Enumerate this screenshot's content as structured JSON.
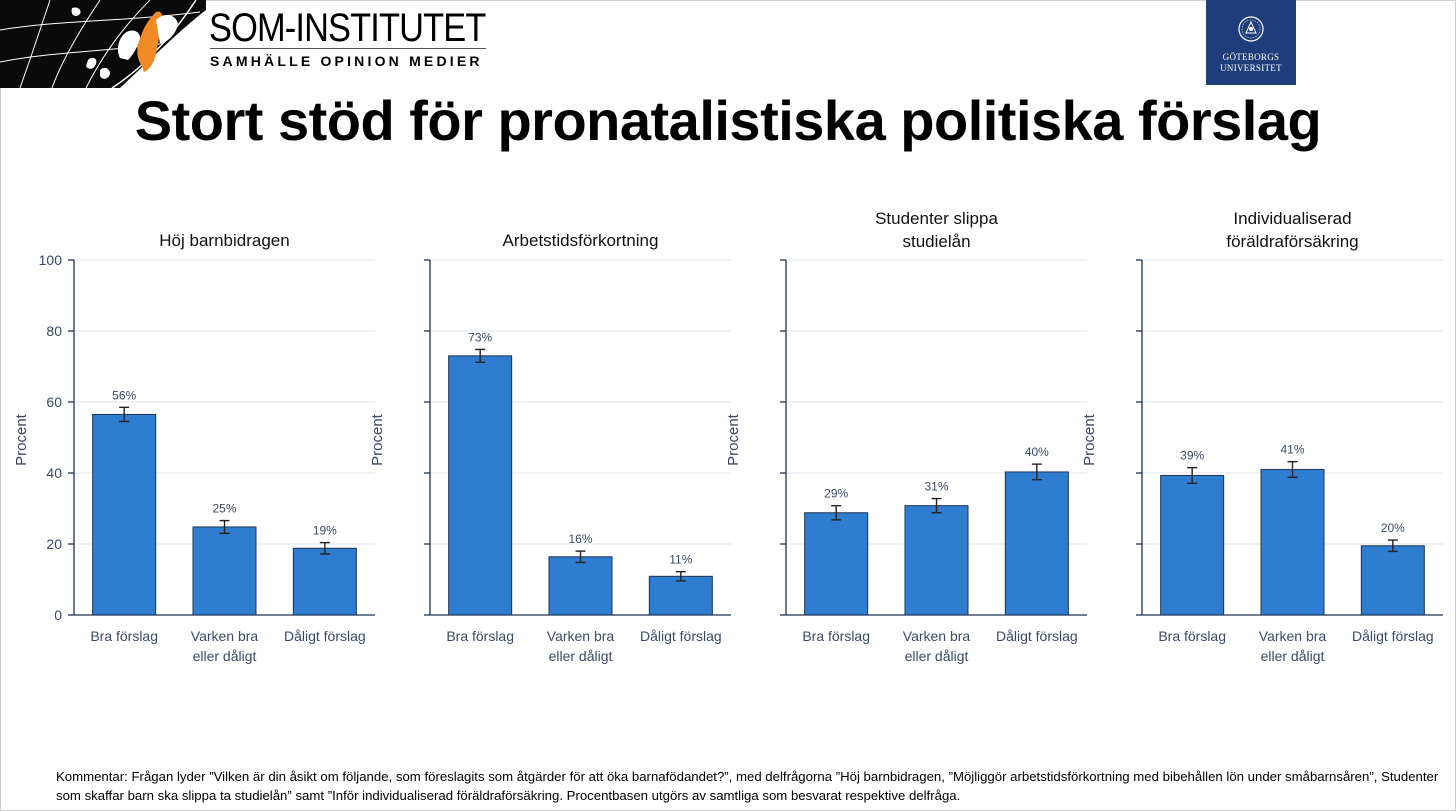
{
  "header": {
    "org_name": "SOM-INSTITUTET",
    "org_tagline": "SAMHÄLLE OPINION MEDIER",
    "university_line1": "GÖTEBORGS",
    "university_line2": "UNIVERSITET"
  },
  "title": "Stort stöd för pronatalistiska politiska förslag",
  "colors": {
    "bar": "#2f7dd1",
    "bar_edge": "#1f3350",
    "axis": "#1f3350",
    "grid": "#dde3ee",
    "text": "#3a4a66"
  },
  "chart_data": [
    {
      "type": "bar",
      "title": [
        "Höj barnbidragen"
      ],
      "ylabel": "Procent",
      "ylim": [
        0,
        100
      ],
      "yticks": [
        0,
        20,
        40,
        60,
        80,
        100
      ],
      "show_tick_labels": true,
      "categories": [
        [
          "Bra förslag"
        ],
        [
          "Varken bra",
          "eller dåligt"
        ],
        [
          "Dåligt förslag"
        ]
      ],
      "values": [
        56.5,
        24.8,
        18.8
      ],
      "errors": [
        2.0,
        1.8,
        1.6
      ],
      "labels": [
        "56%",
        "25%",
        "19%"
      ],
      "grid": true
    },
    {
      "type": "bar",
      "title": [
        "Arbetstidsförkortning"
      ],
      "ylabel": "Procent",
      "ylim": [
        0,
        100
      ],
      "yticks": [
        0,
        20,
        40,
        60,
        80,
        100
      ],
      "show_tick_labels": false,
      "categories": [
        [
          "Bra förslag"
        ],
        [
          "Varken bra",
          "eller dåligt"
        ],
        [
          "Dåligt förslag"
        ]
      ],
      "values": [
        73,
        16.4,
        10.9
      ],
      "errors": [
        1.8,
        1.6,
        1.3
      ],
      "labels": [
        "73%",
        "16%",
        "11%"
      ],
      "grid": true
    },
    {
      "type": "bar",
      "title": [
        "Studenter slippa",
        "studielån"
      ],
      "ylabel": "Procent",
      "ylim": [
        0,
        100
      ],
      "yticks": [
        0,
        20,
        40,
        60,
        80,
        100
      ],
      "show_tick_labels": false,
      "categories": [
        [
          "Bra förslag"
        ],
        [
          "Varken bra",
          "eller dåligt"
        ],
        [
          "Dåligt förslag"
        ]
      ],
      "values": [
        28.8,
        30.8,
        40.3
      ],
      "errors": [
        2.0,
        2.0,
        2.2
      ],
      "labels": [
        "29%",
        "31%",
        "40%"
      ],
      "grid": true
    },
    {
      "type": "bar",
      "title": [
        "Individualiserad",
        "föräldraförsäkring"
      ],
      "ylabel": "Procent",
      "ylim": [
        0,
        100
      ],
      "yticks": [
        0,
        20,
        40,
        60,
        80,
        100
      ],
      "show_tick_labels": false,
      "categories": [
        [
          "Bra förslag"
        ],
        [
          "Varken bra",
          "eller dåligt"
        ],
        [
          "Dåligt förslag"
        ]
      ],
      "values": [
        39.3,
        41,
        19.5
      ],
      "errors": [
        2.2,
        2.2,
        1.6
      ],
      "labels": [
        "39%",
        "41%",
        "20%"
      ],
      "grid": true
    }
  ],
  "comment": {
    "label": "Kommentar",
    "text1": ": Frågan lyder ”Vilken är din åsikt om följande, som föreslagits som åtgärder för att öka barnafödandet?”, med delfrågorna ”Höj barnbidragen, ”Möjliggör arbetstidsförkortning med bibehållen lön under småbarnsåren”, Studenter som skaffar barn ska slippa ta studielån” samt ”Inför individualiserad föräldraförsäkring. Procentbasen utgörs av ",
    "emph": "samtliga",
    "text2": " som besvarat respektive delfråga."
  }
}
